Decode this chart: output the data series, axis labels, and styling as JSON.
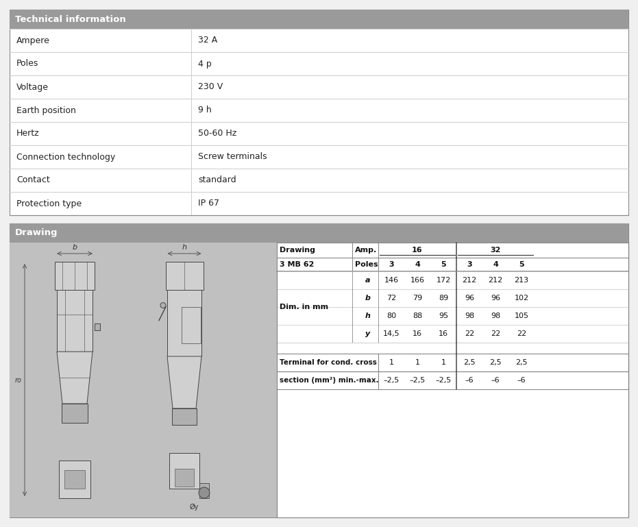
{
  "fig_width": 9.31,
  "fig_height": 7.69,
  "bg_color": "#f0f0f0",
  "header_bg": "#9a9a9a",
  "header_text_color": "#ffffff",
  "border_color": "#cccccc",
  "border_dark": "#888888",
  "text_color": "#222222",
  "tech_title": "Technical information",
  "tech_rows": [
    [
      "Ampere",
      "32 A"
    ],
    [
      "Poles",
      "4 p"
    ],
    [
      "Voltage",
      "230 V"
    ],
    [
      "Earth position",
      "9 h"
    ],
    [
      "Hertz",
      "50-60 Hz"
    ],
    [
      "Connection technology",
      "Screw terminals"
    ],
    [
      "Contact",
      "standard"
    ],
    [
      "Protection type",
      "IP 67"
    ]
  ],
  "drawing_title": "Drawing",
  "drawing_dim_label": "Dim. in mm",
  "drawing_rows": [
    [
      "a",
      "146",
      "166",
      "172",
      "212",
      "212",
      "213"
    ],
    [
      "b",
      "72",
      "79",
      "89",
      "96",
      "96",
      "102"
    ],
    [
      "h",
      "80",
      "88",
      "95",
      "98",
      "98",
      "105"
    ],
    [
      "y",
      "14,5",
      "16",
      "16",
      "22",
      "22",
      "22"
    ]
  ],
  "drawing_terminal_label": "Terminal for cond. cross",
  "drawing_terminal_values": [
    "1",
    "1",
    "1",
    "2,5",
    "2,5",
    "2,5"
  ],
  "drawing_section_label": "section (mm²) min.-max.",
  "drawing_section_values": [
    "–2,5",
    "–2,5",
    "–2,5",
    "–6",
    "–6",
    "–6"
  ]
}
